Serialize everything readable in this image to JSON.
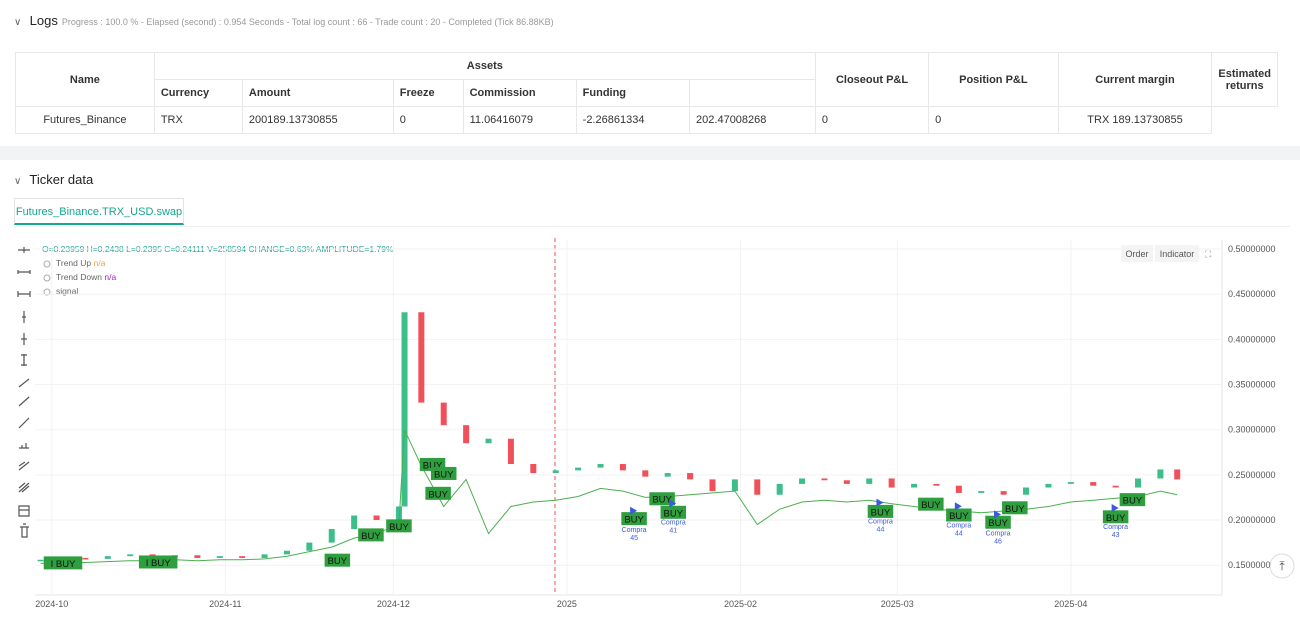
{
  "logs": {
    "title": "Logs",
    "summary": "Progress : 100.0 % - Elapsed (second) : 0.954  Seconds - Total log count : 66 - Trade count : 20 - Completed (Tick 86.88KB)"
  },
  "table": {
    "header_row1": [
      "Name",
      "Assets",
      "Closeout P&L",
      "Position P&L",
      "Current margin",
      "Estimated returns"
    ],
    "header_row2": [
      "Currency",
      "Amount",
      "Freeze",
      "Commission",
      "Funding"
    ],
    "rows": [
      [
        "Futures_Binance",
        "TRX",
        "200189.13730855",
        "0",
        "11.06416079",
        "-2.26861334",
        "202.47008268",
        "0",
        "0",
        "TRX 189.13730855"
      ]
    ]
  },
  "ticker": {
    "title": "Ticker data",
    "tab": "Futures_Binance.TRX_USD.swap",
    "buttons": [
      "Order",
      "Indicator"
    ]
  },
  "legend": {
    "ohlc": "O=0.23959 H=0.2438 L=0.2395 C=0.24111 V=258594 CHANGE=0.63% AMPLITUDE=1.79%",
    "items": [
      {
        "label": "Trend Up",
        "value": "n/a",
        "color": "#e8a33d"
      },
      {
        "label": "Trend Down",
        "value": "n/a",
        "color": "#9c27b0"
      },
      {
        "label": "signal"
      }
    ]
  },
  "chart_data": {
    "type": "candlestick",
    "x": [
      "2024-09-29",
      "2024-10-03",
      "2024-10-07",
      "2024-10-11",
      "2024-10-15",
      "2024-10-19",
      "2024-10-23",
      "2024-10-27",
      "2024-10-31",
      "2024-11-04",
      "2024-11-08",
      "2024-11-12",
      "2024-11-16",
      "2024-11-20",
      "2024-11-24",
      "2024-11-28",
      "2024-12-02",
      "2024-12-03",
      "2024-12-06",
      "2024-12-10",
      "2024-12-14",
      "2024-12-18",
      "2024-12-22",
      "2024-12-26",
      "2024-12-30",
      "2025-01-03",
      "2025-01-07",
      "2025-01-11",
      "2025-01-15",
      "2025-01-19",
      "2025-01-23",
      "2025-01-27",
      "2025-01-31",
      "2025-02-04",
      "2025-02-08",
      "2025-02-12",
      "2025-02-16",
      "2025-02-20",
      "2025-02-24",
      "2025-02-28",
      "2025-03-04",
      "2025-03-08",
      "2025-03-12",
      "2025-03-16",
      "2025-03-20",
      "2025-03-24",
      "2025-03-28",
      "2025-04-01",
      "2025-04-05",
      "2025-04-09",
      "2025-04-13",
      "2025-04-17",
      "2025-04-20"
    ],
    "series": [
      {
        "name": "close",
        "up_color": "#3dbd8a",
        "down_color": "#f0505a",
        "values": [
          0.156,
          0.158,
          0.157,
          0.16,
          0.162,
          0.159,
          0.161,
          0.158,
          0.16,
          0.158,
          0.162,
          0.166,
          0.175,
          0.19,
          0.205,
          0.2,
          0.215,
          0.43,
          0.33,
          0.305,
          0.285,
          0.29,
          0.262,
          0.252,
          0.255,
          0.258,
          0.262,
          0.255,
          0.248,
          0.252,
          0.245,
          0.232,
          0.245,
          0.228,
          0.24,
          0.246,
          0.244,
          0.24,
          0.246,
          0.236,
          0.24,
          0.238,
          0.23,
          0.232,
          0.228,
          0.236,
          0.24,
          0.242,
          0.238,
          0.236,
          0.246,
          0.256,
          0.245
        ]
      },
      {
        "name": "trend",
        "color": "#4caf50",
        "values": [
          0.152,
          0.153,
          0.153,
          0.154,
          0.155,
          0.155,
          0.156,
          0.155,
          0.156,
          0.156,
          0.157,
          0.16,
          0.165,
          0.17,
          0.18,
          0.185,
          0.195,
          0.3,
          0.26,
          0.215,
          0.245,
          0.185,
          0.215,
          0.22,
          0.222,
          0.226,
          0.235,
          0.232,
          0.225,
          0.226,
          0.228,
          0.23,
          0.232,
          0.195,
          0.212,
          0.22,
          0.222,
          0.22,
          0.222,
          0.218,
          0.215,
          0.212,
          0.21,
          0.208,
          0.21,
          0.212,
          0.215,
          0.22,
          0.222,
          0.224,
          0.226,
          0.232,
          0.228
        ]
      }
    ],
    "xlim": [
      "2024-09-28",
      "2025-04-28"
    ],
    "xticks": [
      {
        "value": "2024-10-01",
        "label": "2024-10"
      },
      {
        "value": "2024-11-01",
        "label": "2024-11"
      },
      {
        "value": "2024-12-01",
        "label": "2024-12"
      },
      {
        "value": "2025-01-01",
        "label": "2025"
      },
      {
        "value": "2025-02-01",
        "label": "2025-02"
      },
      {
        "value": "2025-03-01",
        "label": "2025-03"
      },
      {
        "value": "2025-04-01",
        "label": "2025-04"
      }
    ],
    "ylim": [
      0.117,
      0.51
    ],
    "yticks": [
      {
        "value": 0.5,
        "label": "0.50000000"
      },
      {
        "value": 0.45,
        "label": "0.45000000"
      },
      {
        "value": 0.4,
        "label": "0.40000000"
      },
      {
        "value": 0.35,
        "label": "0.35000000"
      },
      {
        "value": 0.3,
        "label": "0.30000000"
      },
      {
        "value": 0.25,
        "label": "0.25000000"
      },
      {
        "value": 0.2,
        "label": "0.20000000"
      },
      {
        "value": 0.15,
        "label": "0.1500000"
      }
    ],
    "grid": true,
    "buy_labels": [
      {
        "text": "I BUY",
        "x": "2024-10-03",
        "y": 0.152
      },
      {
        "text": "I BUY",
        "x": "2024-10-20",
        "y": 0.153
      },
      {
        "text": "BUY",
        "x": "2024-11-21",
        "y": 0.155
      },
      {
        "text": "BUY",
        "x": "2024-11-27",
        "y": 0.183
      },
      {
        "text": "BUY",
        "x": "2024-12-02",
        "y": 0.193
      },
      {
        "text": "BUY",
        "x": "2024-12-08",
        "y": 0.261
      },
      {
        "text": "BUY",
        "x": "2024-12-10",
        "y": 0.251
      },
      {
        "text": "BUY",
        "x": "2024-12-09",
        "y": 0.229
      },
      {
        "text": "BUY",
        "x": "2025-01-13",
        "y": 0.201
      },
      {
        "text": "BUY",
        "x": "2025-01-18",
        "y": 0.223
      },
      {
        "text": "BUY",
        "x": "2025-01-20",
        "y": 0.208
      },
      {
        "text": "BUY",
        "x": "2025-02-26",
        "y": 0.209
      },
      {
        "text": "BUY",
        "x": "2025-03-07",
        "y": 0.217
      },
      {
        "text": "BUY",
        "x": "2025-03-12",
        "y": 0.205
      },
      {
        "text": "BUY",
        "x": "2025-03-19",
        "y": 0.197
      },
      {
        "text": "BUY",
        "x": "2025-03-22",
        "y": 0.213
      },
      {
        "text": "BUY",
        "x": "2025-04-09",
        "y": 0.203
      },
      {
        "text": "BUY",
        "x": "2025-04-12",
        "y": 0.222
      }
    ],
    "compra_labels": [
      {
        "lines": [
          "Compra",
          "45"
        ],
        "x": "2025-01-13",
        "y": 0.187
      },
      {
        "lines": [
          "Compra",
          "41"
        ],
        "x": "2025-01-20",
        "y": 0.195
      },
      {
        "lines": [
          "Compra",
          "44"
        ],
        "x": "2025-02-26",
        "y": 0.196
      },
      {
        "lines": [
          "Compra",
          "44"
        ],
        "x": "2025-03-12",
        "y": 0.192
      },
      {
        "lines": [
          "Compra",
          "46"
        ],
        "x": "2025-03-19",
        "y": 0.183
      },
      {
        "lines": [
          "Compra",
          "43"
        ],
        "x": "2025-04-09",
        "y": 0.19
      }
    ]
  }
}
